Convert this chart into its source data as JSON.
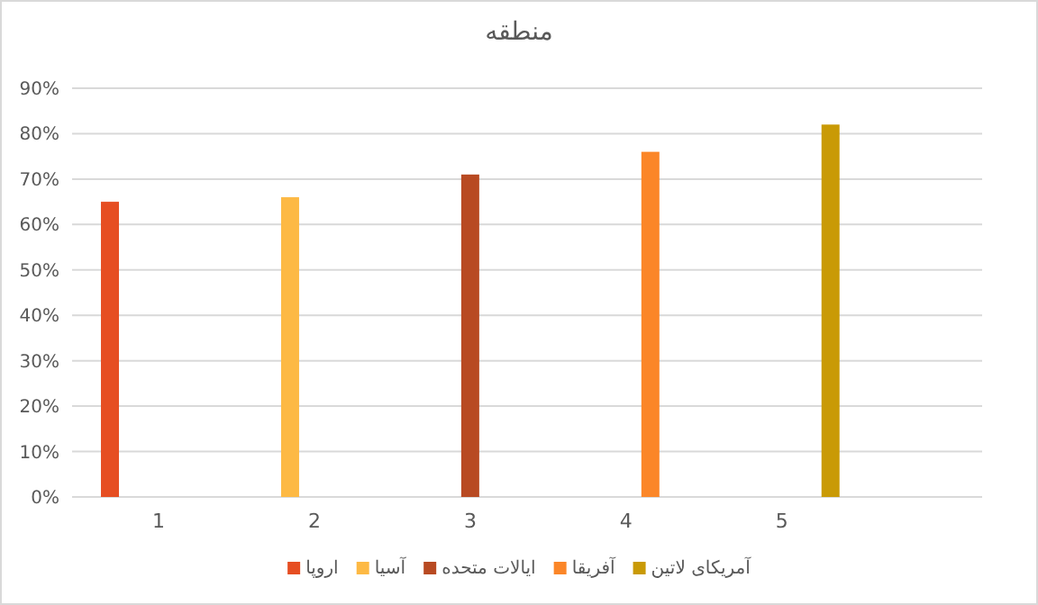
{
  "chart_data": {
    "type": "bar",
    "title": "منطقه",
    "categories": [
      "1",
      "2",
      "3",
      "4",
      "5"
    ],
    "series": [
      {
        "name": "اروپا",
        "color": "#e64e22",
        "values": [
          65,
          null,
          null,
          null,
          null
        ]
      },
      {
        "name": "آسیا",
        "color": "#fdb944",
        "values": [
          null,
          66,
          null,
          null,
          null
        ]
      },
      {
        "name": "ایالات متحده",
        "color": "#b84a22",
        "values": [
          null,
          null,
          71,
          null,
          null
        ]
      },
      {
        "name": "آفریقا",
        "color": "#fb8628",
        "values": [
          null,
          null,
          null,
          76,
          null
        ]
      },
      {
        "name": "آمریکای لاتین",
        "color": "#c99a06",
        "values": [
          null,
          null,
          null,
          null,
          82
        ]
      }
    ],
    "ylim": [
      0,
      90
    ],
    "yticks": [
      {
        "value": 0,
        "label": "0%"
      },
      {
        "value": 10,
        "label": "10%"
      },
      {
        "value": 20,
        "label": "20%"
      },
      {
        "value": 30,
        "label": "30%"
      },
      {
        "value": 40,
        "label": "40%"
      },
      {
        "value": 50,
        "label": "50%"
      },
      {
        "value": 60,
        "label": "60%"
      },
      {
        "value": 70,
        "label": "70%"
      },
      {
        "value": 80,
        "label": "80%"
      },
      {
        "value": 90,
        "label": "90%"
      }
    ],
    "grid": "y",
    "legend": "bottom"
  }
}
